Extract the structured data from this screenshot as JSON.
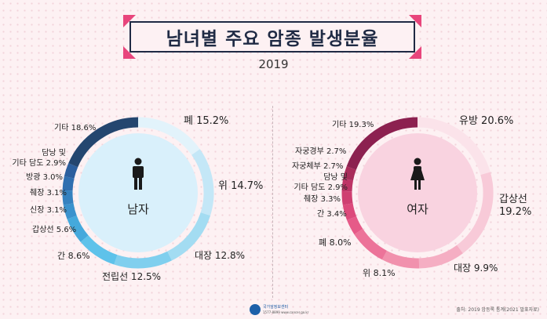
{
  "title": "남녀별 주요 암종 발생분율",
  "year": "2019",
  "colors": {
    "accent": "#e8457c",
    "navy": "#1f2a44"
  },
  "chart_data": [
    {
      "type": "donut",
      "center_label": "남자",
      "center_icon": "male-person-icon",
      "slices": [
        {
          "label": "폐",
          "value": 15.2,
          "text": "15.2%"
        },
        {
          "label": "위",
          "value": 14.7,
          "text": "14.7%"
        },
        {
          "label": "대장",
          "value": 12.8,
          "text": "12.8%"
        },
        {
          "label": "전립선",
          "value": 12.5,
          "text": "12.5%"
        },
        {
          "label": "간",
          "value": 8.6,
          "text": "8.6%"
        },
        {
          "label": "갑상선",
          "value": 5.6,
          "text": "5.6%"
        },
        {
          "label": "신장",
          "value": 3.1,
          "text": "3.1%"
        },
        {
          "label": "췌장",
          "value": 3.1,
          "text": "3.1%"
        },
        {
          "label": "방광",
          "value": 3.0,
          "text": "3.0%"
        },
        {
          "label": "담낭 및\n기타 담도",
          "value": 2.9,
          "text": "2.9%"
        },
        {
          "label": "기타",
          "value": 18.6,
          "text": "18.6%"
        }
      ],
      "colors": [
        "#e2f3fb",
        "#c4e7f7",
        "#a3dcf2",
        "#80cfee",
        "#5ec2ea",
        "#45a9dc",
        "#3b92cd",
        "#3581bf",
        "#306fb0",
        "#2c5f9e",
        "#24466f"
      ]
    },
    {
      "type": "donut",
      "center_label": "여자",
      "center_icon": "female-person-icon",
      "slices": [
        {
          "label": "유방",
          "value": 20.6,
          "text": "20.6%"
        },
        {
          "label": "갑상선",
          "value": 19.2,
          "text": "19.2%"
        },
        {
          "label": "대장",
          "value": 9.9,
          "text": "9.9%"
        },
        {
          "label": "위",
          "value": 8.1,
          "text": "8.1%"
        },
        {
          "label": "폐",
          "value": 8.0,
          "text": "8.0%"
        },
        {
          "label": "간",
          "value": 3.4,
          "text": "3.4%"
        },
        {
          "label": "췌장",
          "value": 3.3,
          "text": "3.3%"
        },
        {
          "label": "담낭 및\n기타 담도",
          "value": 2.9,
          "text": "2.9%"
        },
        {
          "label": "자궁체부",
          "value": 2.7,
          "text": "2.7%"
        },
        {
          "label": "자궁경부",
          "value": 2.7,
          "text": "2.7%"
        },
        {
          "label": "기타",
          "value": 19.3,
          "text": "19.3%"
        }
      ],
      "colors": [
        "#fbe3ea",
        "#f8cad8",
        "#f5aec3",
        "#f191ad",
        "#ec7399",
        "#e65a88",
        "#dc4a7b",
        "#cf3f71",
        "#bd3566",
        "#a82c5a",
        "#8c2150"
      ]
    }
  ],
  "footer": {
    "logo_text": "국가암정보센터",
    "logo_sub": "1577-8899 www.cancer.go.kr",
    "source": "출처: 2019 암등록 통계(2021 발표자료)"
  }
}
